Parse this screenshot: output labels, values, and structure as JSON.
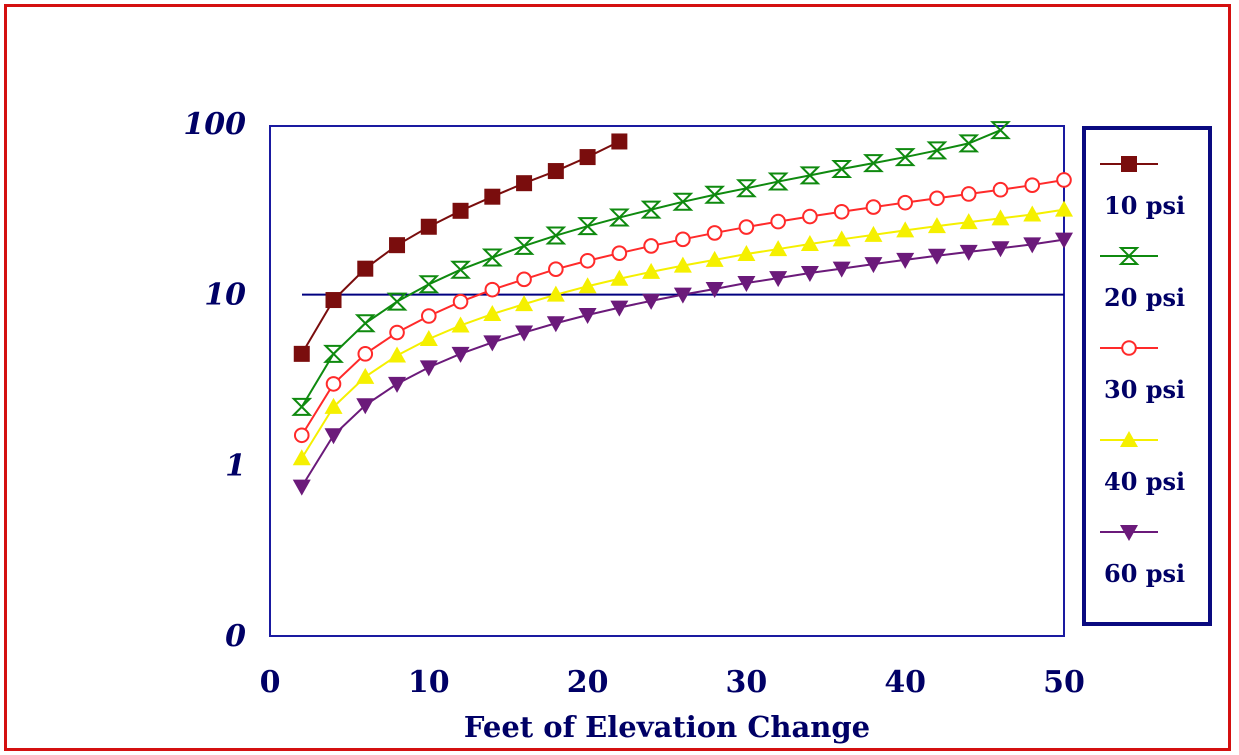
{
  "chart_data": {
    "type": "line",
    "title": "",
    "xlabel": "Feet of Elevation Change",
    "ylabel": "",
    "x_range": [
      0,
      50
    ],
    "y_range": [
      0.1,
      100
    ],
    "y_scale": "log",
    "x_ticks": [
      "0",
      "10",
      "20",
      "30",
      "40",
      "50"
    ],
    "y_ticks": [
      {
        "label": "100",
        "value": 100
      },
      {
        "label": "10",
        "value": 10
      },
      {
        "label": "1",
        "value": 1
      },
      {
        "label": "0",
        "value": 0.1
      }
    ],
    "reference_line": {
      "y": 10
    },
    "legend_position": "right",
    "series": [
      {
        "name": "10 psi",
        "color": "#7a0d0d",
        "marker": "filled-square",
        "x": [
          2,
          4,
          6,
          8,
          10,
          12,
          14,
          16,
          18,
          20,
          22
        ],
        "y": [
          4.5,
          9.3,
          14.2,
          19.5,
          25,
          31,
          37.5,
          45,
          53,
          64,
          79
        ]
      },
      {
        "name": "20 psi",
        "color": "#0f8a0f",
        "marker": "hourglass",
        "x": [
          2,
          4,
          6,
          8,
          10,
          12,
          14,
          16,
          18,
          20,
          22,
          24,
          26,
          28,
          30,
          32,
          34,
          36,
          38,
          40,
          42,
          44,
          46
        ],
        "y": [
          2.2,
          4.5,
          6.8,
          9.1,
          11.5,
          14,
          16.5,
          19.3,
          22.2,
          25.2,
          28.3,
          31.5,
          35,
          38.5,
          42,
          46,
          50,
          54.5,
          59,
          64,
          70,
          77,
          92
        ]
      },
      {
        "name": "30 psi",
        "color": "#ff2a2a",
        "marker": "open-circle",
        "x": [
          2,
          4,
          6,
          8,
          10,
          12,
          14,
          16,
          18,
          20,
          22,
          24,
          26,
          28,
          30,
          32,
          34,
          36,
          38,
          40,
          42,
          44,
          46,
          48,
          50
        ],
        "y": [
          1.5,
          3,
          4.5,
          6,
          7.5,
          9.1,
          10.7,
          12.3,
          14.1,
          15.8,
          17.5,
          19.3,
          21.1,
          23,
          24.9,
          26.8,
          28.7,
          30.6,
          32.6,
          34.6,
          36.7,
          38.9,
          41.2,
          43.8,
          47
        ]
      },
      {
        "name": "40 psi",
        "color": "#f5f000",
        "marker": "filled-triangle-up",
        "x": [
          2,
          4,
          6,
          8,
          10,
          12,
          14,
          16,
          18,
          20,
          22,
          24,
          26,
          28,
          30,
          32,
          34,
          36,
          38,
          40,
          42,
          44,
          46,
          48,
          50
        ],
        "y": [
          1.1,
          2.2,
          3.3,
          4.4,
          5.5,
          6.6,
          7.7,
          8.8,
          10,
          11.2,
          12.4,
          13.6,
          14.8,
          16,
          17.3,
          18.5,
          19.8,
          21.1,
          22.4,
          23.8,
          25.2,
          26.6,
          28,
          29.5,
          31.5
        ]
      },
      {
        "name": "60 psi",
        "color": "#6b1a7a",
        "marker": "filled-triangle-down",
        "x": [
          2,
          4,
          6,
          8,
          10,
          12,
          14,
          16,
          18,
          20,
          22,
          24,
          26,
          28,
          30,
          32,
          34,
          36,
          38,
          40,
          42,
          44,
          46,
          48,
          50
        ],
        "y": [
          0.75,
          1.5,
          2.25,
          3,
          3.75,
          4.5,
          5.25,
          6,
          6.8,
          7.6,
          8.4,
          9.2,
          10,
          10.8,
          11.7,
          12.5,
          13.4,
          14.2,
          15.1,
          16,
          16.9,
          17.8,
          18.7,
          19.7,
          21
        ]
      }
    ]
  }
}
